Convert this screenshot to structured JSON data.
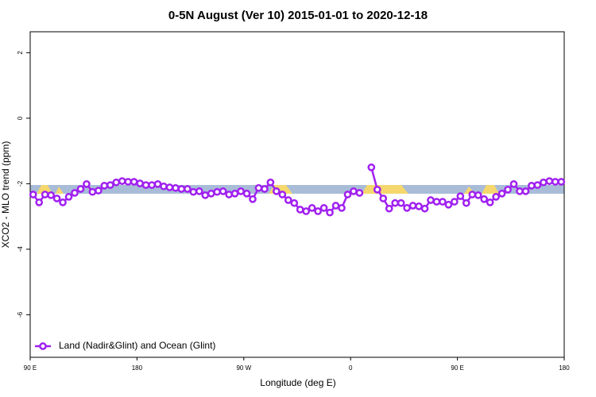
{
  "chart_data": {
    "type": "line",
    "title": "0-5N August (Ver 10)   2015-01-01 to 2020-12-18",
    "x_label": "Longitude (deg E)",
    "y_label": "XCO2 - MLO trend (ppm)",
    "xlim": [
      90,
      540
    ],
    "ylim": [
      -7.3,
      2.64
    ],
    "xticks": [
      {
        "value": 90,
        "label": "90 E"
      },
      {
        "value": 180,
        "label": "180"
      },
      {
        "value": 270,
        "label": "90 W"
      },
      {
        "value": 360,
        "label": "0"
      },
      {
        "value": 450,
        "label": "90 E"
      },
      {
        "value": 540,
        "label": "180"
      }
    ],
    "yticks": [
      -6,
      -4,
      -2,
      0,
      2
    ],
    "legend": "bottom-left",
    "x": [
      92.5,
      97.5,
      102.5,
      107.5,
      112.5,
      117.5,
      122.5,
      127.5,
      132.5,
      137.5,
      142.5,
      147.5,
      152.5,
      157.5,
      162.5,
      167.5,
      172.5,
      177.5,
      182.5,
      187.5,
      192.5,
      197.5,
      202.5,
      207.5,
      212.5,
      217.5,
      222.5,
      227.5,
      232.5,
      237.5,
      242.5,
      247.5,
      252.5,
      257.5,
      262.5,
      267.5,
      272.5,
      277.5,
      282.5,
      287.5,
      292.5,
      297.5,
      302.5,
      307.5,
      312.5,
      317.5,
      322.5,
      327.5,
      332.5,
      337.5,
      342.5,
      347.5,
      352.5,
      357.5,
      362.5,
      367.5,
      372.5,
      377.5,
      382.5,
      387.5,
      392.5,
      397.5,
      402.5,
      407.5,
      412.5,
      417.5,
      422.5,
      427.5,
      432.5,
      437.5,
      442.5,
      447.5,
      452.5,
      457.5,
      462.5,
      467.5,
      472.5,
      477.5,
      482.5,
      487.5,
      492.5,
      497.5,
      502.5,
      507.5,
      512.5,
      517.5,
      522.5,
      527.5,
      532.5,
      537.5
    ],
    "series": [
      {
        "name": "Land (Nadir&Glint) and Ocean (Glint)",
        "color": "#a020f0",
        "values": [
          -2.33,
          -2.57,
          -2.33,
          -2.35,
          -2.45,
          -2.57,
          -2.4,
          -2.28,
          -2.16,
          -2.01,
          -2.25,
          -2.21,
          -2.06,
          -2.04,
          -1.96,
          -1.92,
          -1.94,
          -1.94,
          -1.99,
          -2.04,
          -2.04,
          -2.01,
          -2.08,
          -2.11,
          -2.13,
          -2.16,
          -2.16,
          -2.25,
          -2.23,
          -2.35,
          -2.3,
          -2.25,
          -2.23,
          -2.33,
          -2.3,
          -2.23,
          -2.3,
          -2.47,
          -2.13,
          -2.16,
          -1.96,
          -2.23,
          -2.33,
          -2.5,
          -2.59,
          -2.79,
          -2.84,
          -2.74,
          -2.84,
          -2.74,
          -2.88,
          -2.67,
          -2.74,
          -2.33,
          -2.23,
          -2.28,
          null,
          -1.5,
          -2.18,
          -2.45,
          -2.76,
          -2.59,
          -2.59,
          -2.74,
          -2.67,
          -2.69,
          -2.76,
          -2.5,
          -2.55,
          -2.55,
          -2.64,
          -2.55,
          -2.38,
          -2.59,
          -2.33,
          -2.35,
          -2.47,
          -2.57,
          -2.4,
          -2.3,
          -2.18,
          -2.01,
          -2.23,
          -2.23,
          -2.06,
          -2.04,
          -1.96,
          -1.92,
          -1.94,
          -1.94
        ]
      }
    ]
  }
}
